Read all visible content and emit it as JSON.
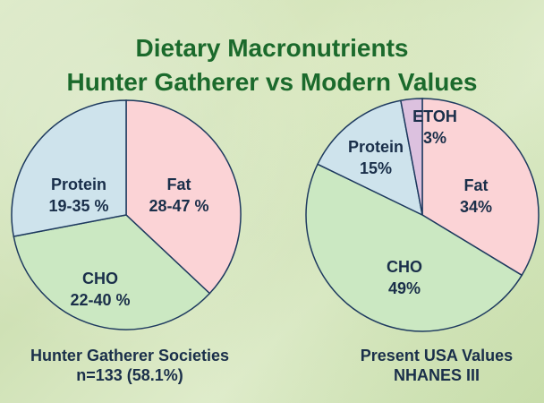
{
  "title": {
    "line1": "Dietary Macronutrients",
    "line2": "Hunter Gatherer vs Modern Values"
  },
  "chart_data": [
    {
      "type": "pie",
      "title": "",
      "caption": [
        "Hunter Gatherer Societies",
        "n=133 (58.1%)"
      ],
      "slices": [
        {
          "name": "Fat",
          "label": "28-47 %",
          "value": 37,
          "color": "#fbd3d6"
        },
        {
          "name": "CHO",
          "label": "22-40 %",
          "value": 35,
          "color": "#cbe8c2"
        },
        {
          "name": "Protein",
          "label": "19-35 %",
          "value": 28,
          "color": "#cee3ec"
        }
      ]
    },
    {
      "type": "pie",
      "title": "",
      "caption": [
        "Present USA Values",
        "NHANES III"
      ],
      "slices": [
        {
          "name": "Fat",
          "label": "34%",
          "value": 34,
          "color": "#fbd3d6"
        },
        {
          "name": "CHO",
          "label": "49%",
          "value": 49,
          "color": "#cbe8c2"
        },
        {
          "name": "Protein",
          "label": "15%",
          "value": 15,
          "color": "#cee3ec"
        },
        {
          "name": "ETOH",
          "label": "3%",
          "value": 3,
          "color": "#dcc1df"
        }
      ]
    }
  ]
}
